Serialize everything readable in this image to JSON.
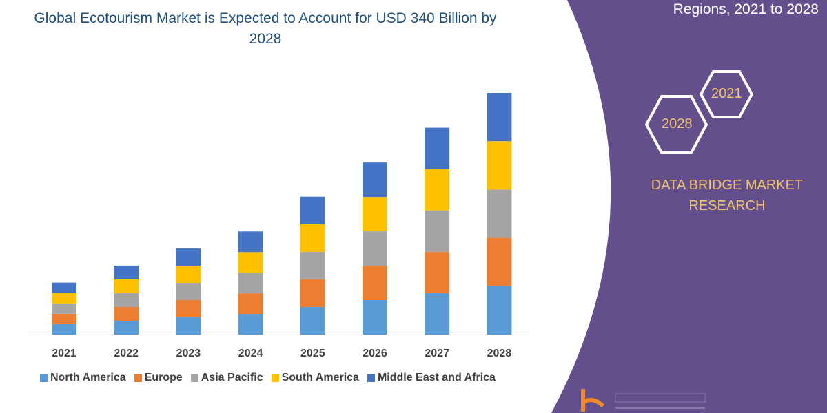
{
  "header": {
    "right_title": "Regions, 2021 to 2028"
  },
  "brand": {
    "name": "DATA BRIDGE MARKET RESEARCH",
    "hex_years": [
      "2021",
      "2028"
    ],
    "logo_text": "DATA BRIDGE MARKET RESEARCH",
    "panel_color": "#634f8c",
    "accent_color": "#f2c46d"
  },
  "chart_data": {
    "type": "bar",
    "stacked": true,
    "title": "Global Ecotourism Market is Expected to Account for USD 340 Billion by 2028",
    "xlabel": "",
    "ylabel": "",
    "categories": [
      "2021",
      "2022",
      "2023",
      "2024",
      "2025",
      "2026",
      "2027",
      "2028"
    ],
    "ylim": [
      0,
      340
    ],
    "grid": false,
    "legend_position": "bottom",
    "series": [
      {
        "name": "North America",
        "color": "#5b9bd5",
        "values": [
          14.6,
          19.4,
          24.2,
          29,
          38.8,
          48.4,
          58.2,
          68
        ]
      },
      {
        "name": "Europe",
        "color": "#ed7d31",
        "values": [
          14.6,
          19.4,
          24.2,
          29,
          38.8,
          48.4,
          58.2,
          68
        ]
      },
      {
        "name": "Asia Pacific",
        "color": "#a5a5a5",
        "values": [
          14.6,
          19.4,
          24.2,
          29,
          38.8,
          48.4,
          58.2,
          68
        ]
      },
      {
        "name": "South America",
        "color": "#ffc000",
        "values": [
          14.6,
          19.4,
          24.2,
          29,
          38.8,
          48.4,
          58.2,
          68
        ]
      },
      {
        "name": "Middle East and Africa",
        "color": "#4472c4",
        "values": [
          14.6,
          19.4,
          24.2,
          29,
          38.8,
          48.4,
          58.2,
          68
        ]
      }
    ]
  }
}
